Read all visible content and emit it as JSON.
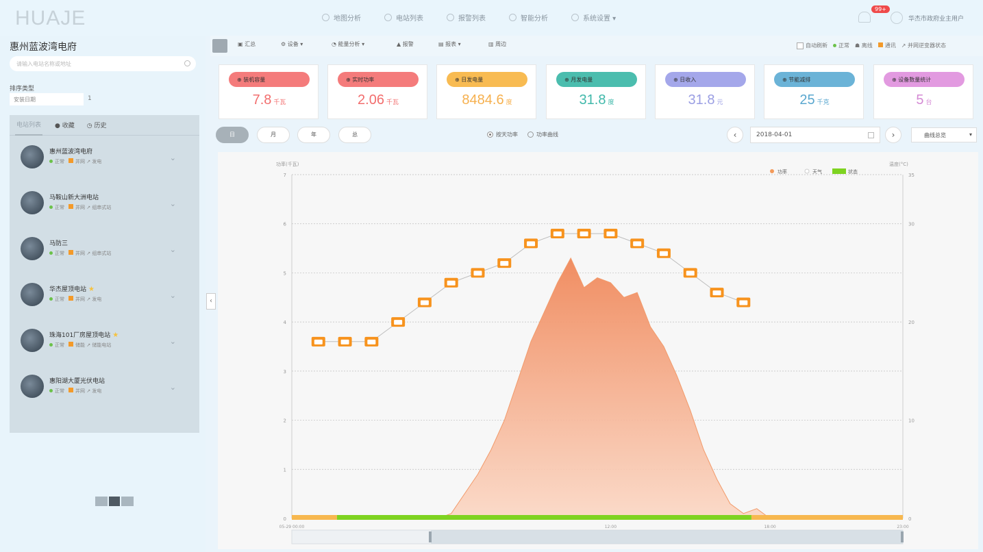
{
  "header": {
    "logo": "HUAJE",
    "nav": [
      {
        "label": "地图分析",
        "icon": "map-icon"
      },
      {
        "label": "电站列表",
        "icon": "list-icon"
      },
      {
        "label": "报警列表",
        "icon": "alarm-icon"
      },
      {
        "label": "智能分析",
        "icon": "analysis-icon"
      },
      {
        "label": "系统设置 ▾",
        "icon": "settings-icon"
      }
    ],
    "badge": "99+",
    "user": "华杰市政府业主用户"
  },
  "sidebar": {
    "title": "惠州蓝波湾电府",
    "search_placeholder": "请输入电站名称或地址",
    "filter_label": "排序类型",
    "filter_value": "安装日期",
    "filter_count": "1",
    "tabs": [
      "电站列表",
      "收藏",
      "历史"
    ],
    "stations": [
      {
        "name": "惠州蓝波湾电府",
        "meta1": "正常",
        "meta2": "并网",
        "meta3": "发电"
      },
      {
        "name": "马鞍山新大洲电站",
        "meta1": "正常",
        "meta2": "并网",
        "meta3": "组串式站"
      },
      {
        "name": "马防三",
        "meta1": "正常",
        "meta2": "并网",
        "meta3": "组串式站"
      },
      {
        "name": "华杰屋顶电站",
        "meta1": "正常",
        "meta2": "并网",
        "meta3": "发电"
      },
      {
        "name": "珠海101厂房屋顶电站",
        "meta1": "正常",
        "meta2": "储能",
        "meta3": "储能电站"
      },
      {
        "name": "惠阳湖大厦光伏电站",
        "meta1": "正常",
        "meta2": "并网",
        "meta3": "发电"
      }
    ]
  },
  "toolbar": {
    "items": [
      "汇总",
      "设备 ▾",
      "能量分析 ▾",
      "报警",
      "报表 ▾",
      "周边"
    ],
    "right": {
      "auto_refresh": "自动刷新",
      "legend1": "正常",
      "legend2": "离线",
      "legend3": "通讯",
      "legend4": "并网逆变器状态"
    }
  },
  "kpis": [
    {
      "label": "装机容量",
      "value": "7.8",
      "unit": "千瓦",
      "color": "#f26d6d",
      "pill": "#f47b7b"
    },
    {
      "label": "实时功率",
      "value": "2.06",
      "unit": "千瓦",
      "color": "#f26d6d",
      "pill": "#f47b7b"
    },
    {
      "label": "日发电量",
      "value": "8484.6",
      "unit": "度",
      "color": "#f6b04e",
      "pill": "#f8bb52"
    },
    {
      "label": "月发电量",
      "value": "31.8",
      "unit": "度",
      "color": "#3fb8aa",
      "pill": "#4bbdae"
    },
    {
      "label": "日收入",
      "value": "31.8",
      "unit": "元",
      "color": "#9a9ee3",
      "pill": "#a4a7ea"
    },
    {
      "label": "节能减排",
      "value": "25",
      "unit": "千克",
      "color": "#5aa7cf",
      "pill": "#6bb3d7"
    },
    {
      "label": "设备数量统计",
      "value": "5",
      "unit": "台",
      "color": "#d48ad4",
      "pill": "#e29ae0"
    }
  ],
  "controls": {
    "segments": [
      "日",
      "月",
      "年",
      "总"
    ],
    "radio1": "按天功率",
    "radio2": "功率曲线",
    "date": "2018-04-01",
    "download": "曲线总览"
  },
  "chart_data": {
    "type": "area",
    "ylabel": "功率(千瓦)",
    "y2label": "温度(°C)",
    "ylim": [
      0,
      7
    ],
    "y2lim": [
      0,
      35
    ],
    "yticks": [
      "0",
      "1",
      "2",
      "3",
      "4",
      "5",
      "6",
      "7"
    ],
    "y2ticks": [
      "0",
      "10",
      "20",
      "30",
      "35"
    ],
    "xticks": [
      "05-29 00:00",
      "12:00",
      "18:00",
      "23:00"
    ],
    "legend": [
      "功率",
      "天气",
      "状态"
    ],
    "series": [
      {
        "name": "功率",
        "x": [
          5.5,
          6,
          6.5,
          7,
          7.5,
          8,
          8.5,
          9,
          9.5,
          10,
          10.5,
          11,
          11.5,
          12,
          12.5,
          13,
          13.5,
          14,
          14.5,
          15,
          15.5,
          16,
          16.5,
          17,
          17.5,
          18
        ],
        "values": [
          0,
          0.1,
          0.5,
          0.9,
          1.4,
          2.0,
          2.8,
          3.6,
          4.2,
          4.8,
          5.3,
          4.7,
          4.9,
          4.8,
          4.5,
          4.6,
          3.9,
          3.5,
          2.9,
          2.2,
          1.4,
          0.8,
          0.3,
          0.1,
          0.2,
          0
        ]
      },
      {
        "name": "天气",
        "x": [
          1,
          2,
          3,
          4,
          5,
          6,
          7,
          8,
          9,
          10,
          11,
          12,
          13,
          14,
          15,
          16,
          17
        ],
        "values": [
          18,
          18,
          18,
          20,
          22,
          24,
          25,
          26,
          28,
          29,
          29,
          29,
          28,
          27,
          25,
          23,
          22
        ]
      }
    ],
    "status_bar": [
      {
        "from": 0,
        "to": 1.7,
        "state": "offline",
        "color": "#f7b84f"
      },
      {
        "from": 1.7,
        "to": 17.3,
        "state": "normal",
        "color": "#7ed321"
      },
      {
        "from": 17.3,
        "to": 23,
        "state": "offline",
        "color": "#f7b84f"
      }
    ],
    "grid": true,
    "legend_position": "top-right"
  }
}
